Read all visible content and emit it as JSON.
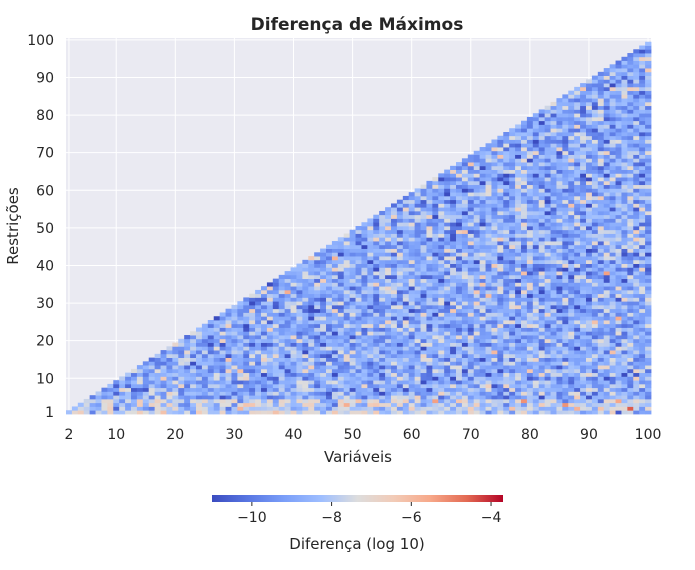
{
  "chart_data": {
    "type": "heatmap",
    "title": "Diferença de Máximos",
    "xlabel": "Variáveis",
    "ylabel": "Restrições",
    "x": {
      "min": 2,
      "max": 100,
      "ticks": [
        "2",
        "10",
        "20",
        "30",
        "40",
        "50",
        "60",
        "70",
        "80",
        "90",
        "100"
      ]
    },
    "y": {
      "min": 1,
      "max": 100,
      "ticks": [
        "1",
        "10",
        "20",
        "30",
        "40",
        "50",
        "60",
        "70",
        "80",
        "90",
        "100"
      ]
    },
    "mask": "cells shown only where Restrições < Variáveis (lower-right triangle); upper-left region empty",
    "value_range_log10": [
      -11,
      -3.7
    ],
    "typical_value_log10": -8.8,
    "colormap": "coolwarm",
    "colors": {
      "low": "#3b4cc0",
      "mid": "#dddddd",
      "high": "#b40426",
      "plot_background": "#eaeaf2",
      "grid": "#ffffff"
    },
    "grid": true,
    "colorbar": {
      "label": "Diferença (log 10)",
      "orientation": "horizontal",
      "placement": "bottom",
      "ticks": [
        "−10",
        "−8",
        "−6",
        "−4"
      ]
    }
  }
}
